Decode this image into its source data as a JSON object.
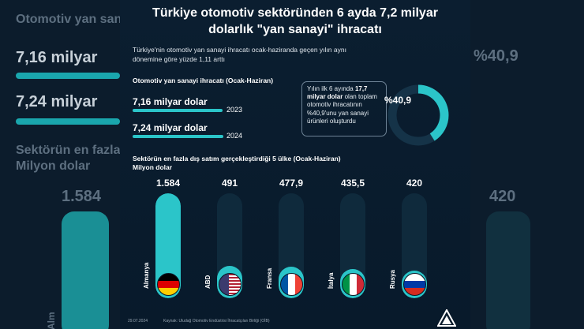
{
  "header": {
    "title": "Türkiye otomotiv sektöründen 6 ayda 7,2 milyar dolarlık \"yan sanayi\" ihracatı",
    "subtitle": "Türkiye'nin otomotiv yan sanayi ihracatı ocak-haziranda geçen yılın aynı dönemine göre yüzde 1,11 arttı"
  },
  "background": {
    "left_line1": "Otomotiv yan sanay",
    "left_val1": "7,16 milyar",
    "left_val2": "7,24 milyar",
    "left_sec1": "Sektörün en fazla",
    "left_sec2": "Milyon dolar",
    "left_col": "1.584",
    "left_bottom": "Alm",
    "right_pct": "%40,9",
    "right_col": "420"
  },
  "export_section": {
    "label": "Otomotiv yan sanayi ihracatı (Ocak-Haziran)",
    "rows": [
      {
        "value_label": "7,16 milyar dolar",
        "year": "2023",
        "value": 7.16
      },
      {
        "value_label": "7,24 milyar dolar",
        "year": "2024",
        "value": 7.24
      }
    ]
  },
  "callout": {
    "pre": "Yılın ilk 6 ayında",
    "bold": "17,7 milyar dolar",
    "post": "olan toplam otomotiv ihracatının %40,9'unu yan sanayi ürünleri oluşturdu",
    "percent_label": "%40,9",
    "percent": 40.9
  },
  "chart_data": {
    "type": "bar",
    "title": "Sektörün en fazla dış satım gerçekleştirdiği 5 ülke (Ocak-Haziran)",
    "ylabel": "Milyon dolar",
    "categories": [
      "Almanya",
      "ABD",
      "Fransa",
      "İtalya",
      "Rusya"
    ],
    "value_labels": [
      "1.584",
      "491",
      "477,9",
      "435,5",
      "420"
    ],
    "values": [
      1584,
      491,
      477.9,
      435.5,
      420
    ],
    "ylim": [
      0,
      1584
    ]
  },
  "colors": {
    "accent": "#2bc5c9",
    "background": "#0a1826"
  },
  "footer": {
    "date": "29.07.2024",
    "source": "Kaynak: Uludağ Otomotiv Endüstrisi İhracatçıları Birliği (OİB)",
    "logo": "AA"
  }
}
